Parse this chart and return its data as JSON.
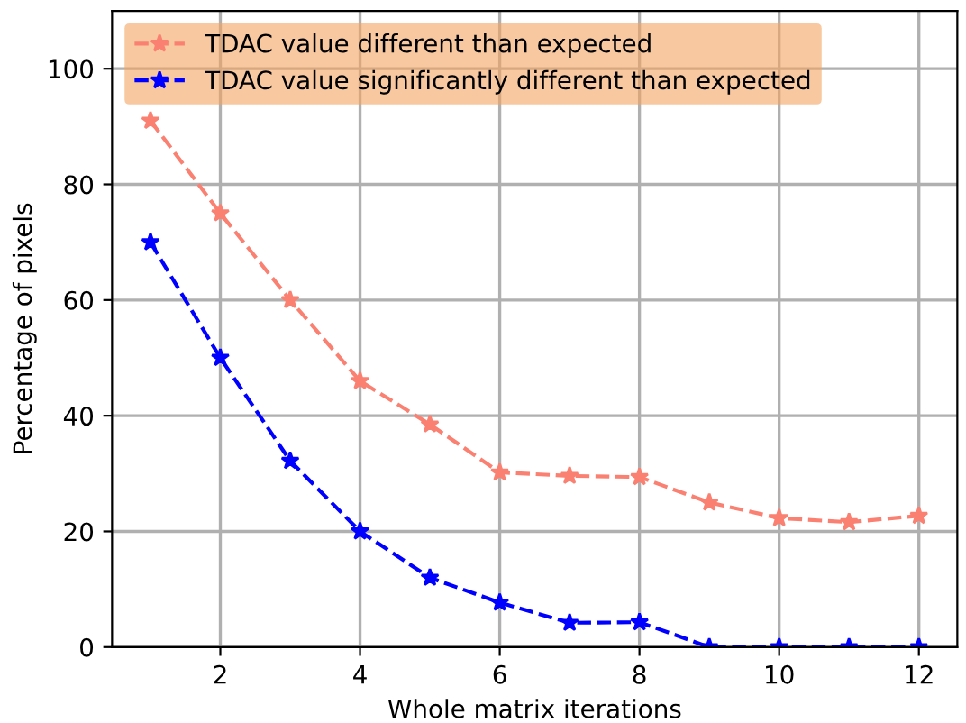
{
  "chart_data": {
    "type": "line",
    "xlabel": "Whole matrix iterations",
    "ylabel": "Percentage of pixels",
    "x": [
      1,
      2,
      3,
      4,
      5,
      6,
      7,
      8,
      9,
      10,
      11,
      12
    ],
    "series": [
      {
        "name": "TDAC value different than expected",
        "color": "#fa8072",
        "values": [
          91,
          75,
          60,
          46,
          38.5,
          30.2,
          29.6,
          29.4,
          25,
          22.3,
          21.6,
          22.7
        ]
      },
      {
        "name": "TDAC value significantly different than expected",
        "color": "#0000ff",
        "values": [
          70,
          50,
          32.2,
          20,
          12,
          7.7,
          4.2,
          4.3,
          0,
          0,
          0,
          0
        ]
      }
    ],
    "xlim": [
      0.45,
      12.55
    ],
    "ylim": [
      0,
      110
    ],
    "xticks": [
      2,
      4,
      6,
      8,
      10,
      12
    ],
    "yticks": [
      0,
      20,
      40,
      60,
      80,
      100
    ],
    "grid": true,
    "legend": "top left",
    "marker": "star",
    "line_style": "dashed"
  }
}
